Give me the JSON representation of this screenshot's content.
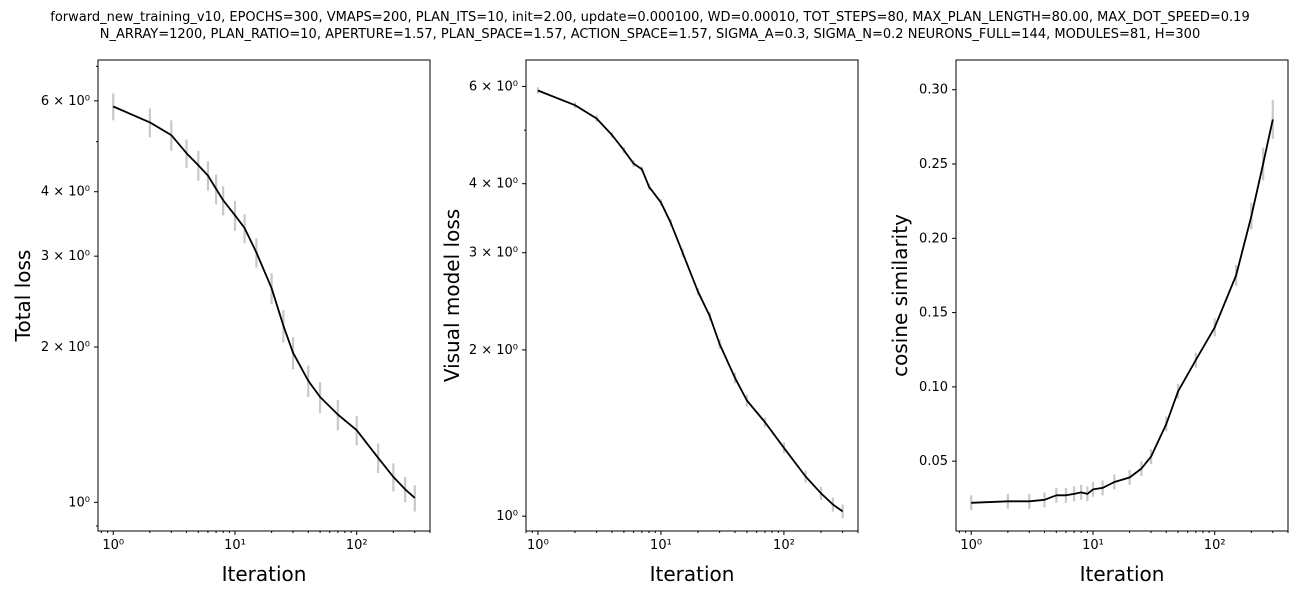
{
  "figure": {
    "title_line1": "forward_new_training_v10, EPOCHS=300, VMAPS=200, PLAN_ITS=10, init=2.00, update=0.000100, WD=0.00010, TOT_STEPS=80, MAX_PLAN_LENGTH=80.00, MAX_DOT_SPEED=0.19",
    "title_line2": "N_ARRAY=1200, PLAN_RATIO=10, APERTURE=1.57, PLAN_SPACE=1.57, ACTION_SPACE=1.57, SIGMA_A=0.3, SIGMA_N=0.2 NEURONS_FULL=144, MODULES=81, H=300",
    "line_color": "#000000",
    "errorbar_color": "#c8c8c8"
  },
  "chart_data": [
    {
      "type": "line",
      "xlabel": "Iteration",
      "ylabel": "Total loss",
      "xscale": "log",
      "yscale": "log",
      "xlim": [
        0.75,
        400
      ],
      "ylim": [
        0.88,
        7.2
      ],
      "x_ticks": [
        1,
        10,
        100
      ],
      "x_tick_labels": [
        "10⁰",
        "10¹",
        "10²"
      ],
      "y_ticks": [
        1,
        2,
        3,
        4,
        6
      ],
      "y_tick_labels": [
        "10⁰",
        "2 × 10⁰",
        "3 × 10⁰",
        "4 × 10⁰",
        "6 × 10⁰"
      ],
      "grid": false,
      "x": [
        1,
        2,
        3,
        4,
        5,
        6,
        7,
        8,
        10,
        12,
        15,
        20,
        25,
        30,
        40,
        50,
        70,
        100,
        150,
        200,
        250,
        300
      ],
      "y": [
        5.85,
        5.45,
        5.15,
        4.75,
        4.5,
        4.3,
        4.05,
        3.85,
        3.6,
        3.4,
        3.05,
        2.6,
        2.2,
        1.95,
        1.72,
        1.6,
        1.48,
        1.38,
        1.22,
        1.12,
        1.06,
        1.02
      ],
      "err": [
        0.35,
        0.35,
        0.35,
        0.3,
        0.3,
        0.28,
        0.27,
        0.25,
        0.24,
        0.22,
        0.2,
        0.18,
        0.16,
        0.14,
        0.12,
        0.11,
        0.1,
        0.09,
        0.08,
        0.07,
        0.06,
        0.06
      ]
    },
    {
      "type": "line",
      "xlabel": "Iteration",
      "ylabel": "Visual model loss",
      "xscale": "log",
      "yscale": "log",
      "xlim": [
        0.8,
        400
      ],
      "ylim": [
        0.94,
        6.7
      ],
      "x_ticks": [
        1,
        10,
        100
      ],
      "x_tick_labels": [
        "10⁰",
        "10¹",
        "10²"
      ],
      "y_ticks": [
        1,
        2,
        3,
        4,
        6
      ],
      "y_tick_labels": [
        "10⁰",
        "2 × 10⁰",
        "3 × 10⁰",
        "4 × 10⁰",
        "6 × 10⁰"
      ],
      "grid": false,
      "x": [
        1,
        2,
        3,
        4,
        5,
        6,
        7,
        8,
        10,
        12,
        15,
        20,
        25,
        30,
        40,
        50,
        70,
        100,
        150,
        200,
        250,
        300
      ],
      "y": [
        5.9,
        5.55,
        5.25,
        4.9,
        4.6,
        4.35,
        4.25,
        3.95,
        3.7,
        3.4,
        3.0,
        2.55,
        2.3,
        2.05,
        1.78,
        1.62,
        1.48,
        1.33,
        1.18,
        1.1,
        1.05,
        1.02
      ],
      "err": [
        0.08,
        0.07,
        0.07,
        0.06,
        0.06,
        0.06,
        0.05,
        0.05,
        0.05,
        0.05,
        0.05,
        0.04,
        0.04,
        0.04,
        0.04,
        0.04,
        0.03,
        0.03,
        0.03,
        0.03,
        0.03,
        0.03
      ]
    },
    {
      "type": "line",
      "xlabel": "Iteration",
      "ylabel": "cosine similarity",
      "xscale": "log",
      "yscale": "linear",
      "xlim": [
        0.75,
        400
      ],
      "ylim": [
        0.003,
        0.32
      ],
      "x_ticks": [
        1,
        10,
        100
      ],
      "x_tick_labels": [
        "10⁰",
        "10¹",
        "10²"
      ],
      "y_ticks": [
        0.05,
        0.1,
        0.15,
        0.2,
        0.25,
        0.3
      ],
      "y_tick_labels": [
        "0.05",
        "0.10",
        "0.15",
        "0.20",
        "0.25",
        "0.30"
      ],
      "grid": false,
      "x": [
        1,
        2,
        3,
        4,
        5,
        6,
        7,
        8,
        9,
        10,
        12,
        15,
        20,
        25,
        30,
        40,
        50,
        70,
        100,
        150,
        200,
        250,
        300
      ],
      "y": [
        0.022,
        0.023,
        0.023,
        0.024,
        0.027,
        0.027,
        0.028,
        0.029,
        0.028,
        0.031,
        0.032,
        0.036,
        0.039,
        0.045,
        0.053,
        0.075,
        0.097,
        0.118,
        0.14,
        0.175,
        0.215,
        0.25,
        0.28
      ],
      "err": [
        0.005,
        0.005,
        0.005,
        0.005,
        0.005,
        0.005,
        0.005,
        0.005,
        0.005,
        0.005,
        0.005,
        0.005,
        0.005,
        0.005,
        0.005,
        0.005,
        0.005,
        0.005,
        0.006,
        0.007,
        0.009,
        0.011,
        0.013
      ]
    }
  ]
}
